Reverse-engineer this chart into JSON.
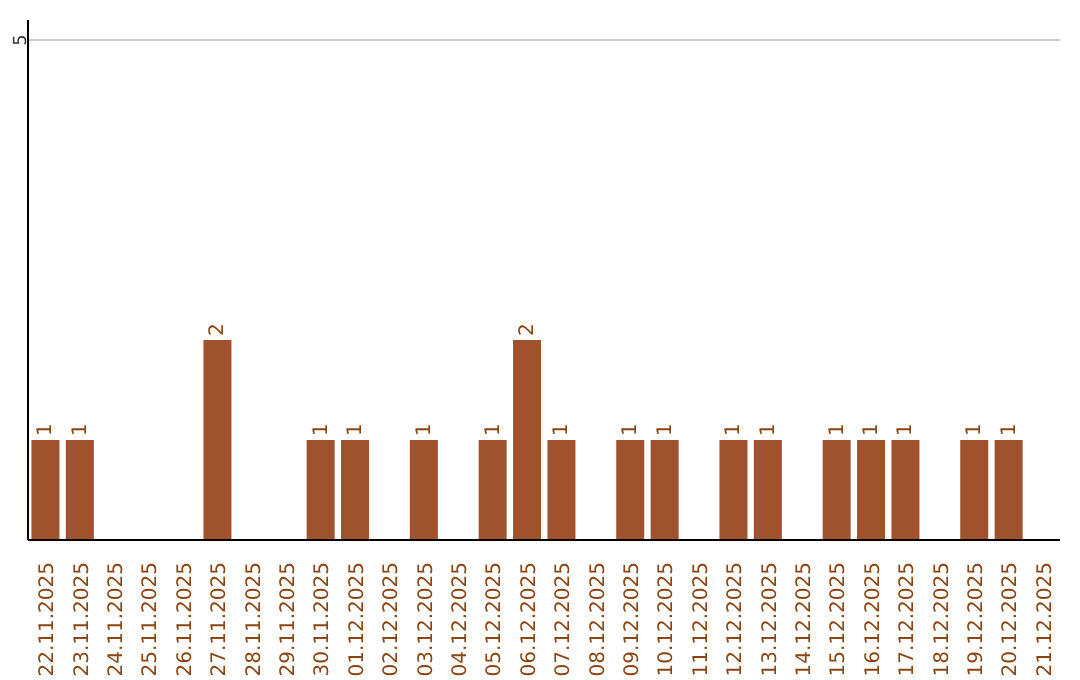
{
  "chart_data": {
    "type": "bar",
    "categories": [
      "22.11.2025",
      "23.11.2025",
      "24.11.2025",
      "25.11.2025",
      "26.11.2025",
      "27.11.2025",
      "28.11.2025",
      "29.11.2025",
      "30.11.2025",
      "01.12.2025",
      "02.12.2025",
      "03.12.2025",
      "04.12.2025",
      "05.12.2025",
      "06.12.2025",
      "07.12.2025",
      "08.12.2025",
      "09.12.2025",
      "10.12.2025",
      "11.12.2025",
      "12.12.2025",
      "13.12.2025",
      "14.12.2025",
      "15.12.2025",
      "16.12.2025",
      "17.12.2025",
      "18.12.2025",
      "19.12.2025",
      "20.12.2025",
      "21.12.2025"
    ],
    "values": [
      1,
      1,
      0,
      0,
      0,
      2,
      0,
      0,
      1,
      1,
      0,
      1,
      0,
      1,
      2,
      1,
      0,
      1,
      1,
      0,
      1,
      1,
      0,
      1,
      1,
      1,
      0,
      1,
      1,
      0
    ],
    "value_labels": [
      "1",
      "1",
      null,
      null,
      null,
      "2",
      null,
      null,
      "1",
      "1",
      null,
      "1",
      null,
      "1",
      "2",
      "1",
      null,
      "1",
      "1",
      null,
      "1",
      "1",
      null,
      "1",
      "1",
      "1",
      null,
      "1",
      "1",
      null
    ],
    "color": "#a0522d",
    "ylim": [
      0,
      5.2
    ],
    "yticks": [
      5
    ],
    "grid": "y"
  }
}
